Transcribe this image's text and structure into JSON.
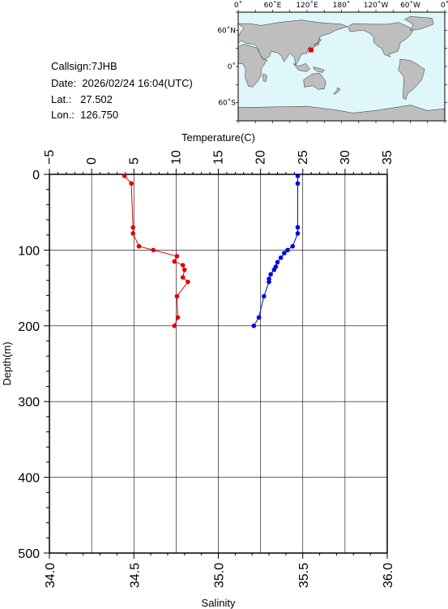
{
  "info": {
    "callsign_line": "Callsign:7JHB",
    "date_line": "Date:  2026/02/24 16:04(UTC)",
    "lat_line": "Lat.:   27.502",
    "lon_line": "Lon.:  126.750"
  },
  "map": {
    "top_labels": [
      "0˚",
      "60˚E",
      "120˚E",
      "180˚",
      "120˚W",
      "60˚W",
      "0˚"
    ],
    "side_labels": [
      "60˚N",
      "0˚",
      "60˚S"
    ],
    "colors": {
      "ocean": "#dff6fb",
      "land": "#bebebe",
      "marker": "#e00000"
    },
    "station": {
      "lat": 27.502,
      "lon": 126.75
    }
  },
  "chart_data": {
    "type": "line",
    "y_axis": {
      "label": "Depth(m)",
      "range": [
        0,
        500
      ],
      "inverted": true,
      "ticks": [
        "0",
        "100",
        "200",
        "300",
        "400",
        "500"
      ]
    },
    "top_axis": {
      "label": "Temperature(C)",
      "range": [
        -5,
        35
      ],
      "ticks": [
        "−5",
        "0",
        "5",
        "10",
        "15",
        "20",
        "25",
        "30",
        "35"
      ]
    },
    "bottom_axis": {
      "label": "Salinity",
      "range": [
        34.0,
        36.0
      ],
      "ticks": [
        "34.0",
        "34.5",
        "35.0",
        "35.5",
        "36.0"
      ]
    },
    "grid": true,
    "series": [
      {
        "color": "#e00000",
        "axis": "top",
        "points": [
          [
            3.9,
            2
          ],
          [
            4.7,
            12
          ],
          [
            4.9,
            70
          ],
          [
            4.9,
            78
          ],
          [
            5.6,
            95
          ],
          [
            7.3,
            100
          ],
          [
            10.1,
            108
          ],
          [
            9.8,
            115
          ],
          [
            10.8,
            120
          ],
          [
            11.0,
            126
          ],
          [
            10.8,
            136
          ],
          [
            11.4,
            142
          ],
          [
            10.1,
            161
          ],
          [
            10.2,
            189
          ],
          [
            9.8,
            200
          ]
        ]
      },
      {
        "color": "#0000e0",
        "axis": "bottom",
        "points": [
          [
            35.47,
            2
          ],
          [
            35.47,
            12
          ],
          [
            35.47,
            70
          ],
          [
            35.47,
            78
          ],
          [
            35.44,
            95
          ],
          [
            35.41,
            100
          ],
          [
            35.39,
            104
          ],
          [
            35.37,
            110
          ],
          [
            35.35,
            116
          ],
          [
            35.34,
            122
          ],
          [
            35.33,
            126
          ],
          [
            35.31,
            132
          ],
          [
            35.3,
            138
          ],
          [
            35.3,
            142
          ],
          [
            35.27,
            161
          ],
          [
            35.24,
            189
          ],
          [
            35.21,
            200
          ]
        ]
      }
    ]
  }
}
